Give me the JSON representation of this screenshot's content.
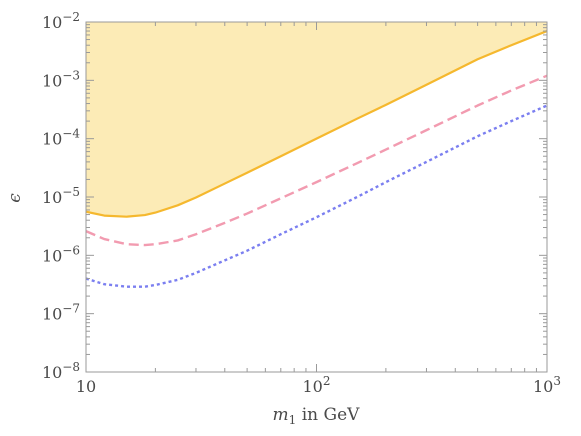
{
  "chart_data": {
    "type": "line",
    "title": "",
    "xlabel_main": "m",
    "xlabel_sub": "1",
    "xlabel_rest": " in GeV",
    "ylabel": "ϵ",
    "xscale": "log",
    "yscale": "log",
    "xlim": [
      10,
      1000
    ],
    "ylim": [
      1e-08,
      0.01
    ],
    "grid": false,
    "legend": "none",
    "x_ticks": [
      {
        "value": 10,
        "base": "10",
        "exp": ""
      },
      {
        "value": 100,
        "base": "10",
        "exp": "2"
      },
      {
        "value": 1000,
        "base": "10",
        "exp": "3"
      }
    ],
    "y_ticks": [
      {
        "value": 1e-08,
        "base": "10",
        "exp": "−8"
      },
      {
        "value": 1e-07,
        "base": "10",
        "exp": "−7"
      },
      {
        "value": 1e-06,
        "base": "10",
        "exp": "−6"
      },
      {
        "value": 1e-05,
        "base": "10",
        "exp": "−5"
      },
      {
        "value": 0.0001,
        "base": "10",
        "exp": "−4"
      },
      {
        "value": 0.001,
        "base": "10",
        "exp": "−3"
      },
      {
        "value": 0.01,
        "base": "10",
        "exp": "−2"
      }
    ],
    "series": [
      {
        "color": "#f5b82e",
        "style": "solid",
        "fill_above": true,
        "fill_color": "#fcebb6",
        "x": [
          10,
          12,
          15,
          18,
          20,
          25,
          30,
          40,
          50,
          70,
          100,
          150,
          200,
          300,
          500,
          700,
          1000
        ],
        "y": [
          5.6e-06,
          4.8e-06,
          4.6e-06,
          4.9e-06,
          5.4e-06,
          7.2e-06,
          9.8e-06,
          1.7e-05,
          2.6e-05,
          5e-05,
          0.0001,
          0.00022,
          0.00038,
          0.00084,
          0.0023,
          0.004,
          0.007
        ]
      },
      {
        "color": "#f29bb0",
        "style": "dashed",
        "fill_above": false,
        "x": [
          10,
          12,
          15,
          18,
          20,
          25,
          30,
          40,
          50,
          70,
          100,
          150,
          200,
          300,
          500,
          700,
          1000
        ],
        "y": [
          2.6e-06,
          1.9e-06,
          1.55e-06,
          1.5e-06,
          1.55e-06,
          1.8e-06,
          2.3e-06,
          3.6e-06,
          5.2e-06,
          9.5e-06,
          1.8e-05,
          3.8e-05,
          6.5e-05,
          0.00014,
          0.00037,
          0.00067,
          0.0012
        ]
      },
      {
        "color": "#7b7ff0",
        "style": "dotted",
        "fill_above": false,
        "x": [
          10,
          12,
          15,
          18,
          20,
          25,
          30,
          40,
          50,
          70,
          100,
          150,
          200,
          300,
          500,
          700,
          1000
        ],
        "y": [
          4e-07,
          3.2e-07,
          2.9e-07,
          2.9e-07,
          3.1e-07,
          3.8e-07,
          5e-07,
          8.2e-07,
          1.2e-06,
          2.3e-06,
          4.5e-06,
          1e-05,
          1.8e-05,
          4e-05,
          0.00011,
          0.0002,
          0.00037
        ]
      }
    ]
  }
}
